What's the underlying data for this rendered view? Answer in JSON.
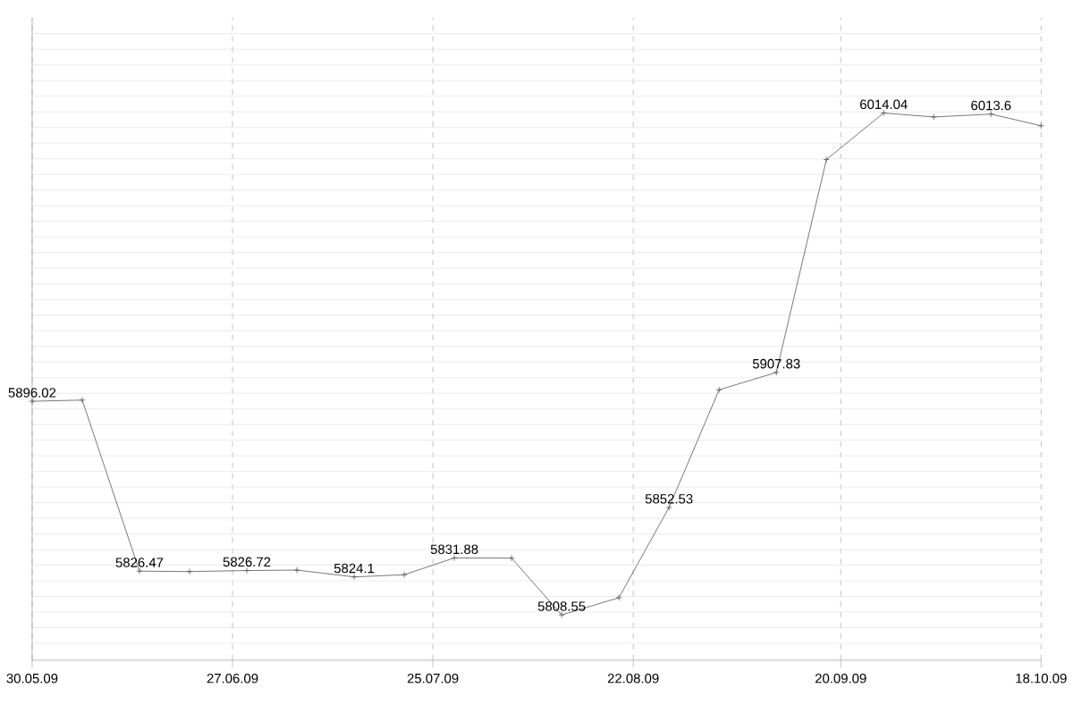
{
  "chart_data": {
    "type": "line",
    "x": [
      "2009-05-30",
      "2009-06-06",
      "2009-06-14",
      "2009-06-21",
      "2009-06-29",
      "2009-07-06",
      "2009-07-14",
      "2009-07-21",
      "2009-07-28",
      "2009-08-05",
      "2009-08-12",
      "2009-08-20",
      "2009-08-27",
      "2009-09-03",
      "2009-09-11",
      "2009-09-18",
      "2009-09-26",
      "2009-10-03",
      "2009-10-11",
      "2009-10-18"
    ],
    "series": [
      {
        "color": "#555555",
        "values": [
          5896.02,
          5896.5,
          5826.47,
          5826.3,
          5826.72,
          5826.9,
          5824.1,
          5825,
          5831.88,
          5831.8,
          5808.55,
          5815.6,
          5852.53,
          5900.7,
          5907.83,
          5995,
          6014.04,
          6012.4,
          6013.6,
          6008.8
        ],
        "value_labels": [
          "5896.02",
          null,
          "5826.47",
          null,
          "5826.72",
          null,
          "5824.1",
          null,
          "5831.88",
          null,
          "5808.55",
          null,
          "5852.53",
          null,
          "5907.83",
          null,
          "6014.04",
          null,
          "6013.6",
          null
        ]
      }
    ],
    "xlim": [
      "2009-05-30",
      "2009-10-18"
    ],
    "xticks": [
      {
        "value": "2009-05-30",
        "label": "30.05.09"
      },
      {
        "value": "2009-06-27",
        "label": "27.06.09"
      },
      {
        "value": "2009-07-25",
        "label": "25.07.09"
      },
      {
        "value": "2009-08-22",
        "label": "22.08.09"
      },
      {
        "value": "2009-09-20",
        "label": "20.09.09"
      },
      {
        "value": "2009-10-18",
        "label": "18.10.09"
      }
    ],
    "ylim": [
      5790,
      6053
    ],
    "yticks": [
      {
        "value": 5796.9,
        "label": null
      },
      {
        "value": 5803.3,
        "label": null
      },
      {
        "value": 5809.7,
        "label": null
      },
      {
        "value": 5816.1,
        "label": null
      },
      {
        "value": 5822.5,
        "label": null
      },
      {
        "value": 5828.9,
        "label": null
      },
      {
        "value": 5835.3,
        "label": null
      },
      {
        "value": 5841.7,
        "label": null
      },
      {
        "value": 5848.1,
        "label": null
      },
      {
        "value": 5854.5,
        "label": null
      },
      {
        "value": 5860.9,
        "label": null
      },
      {
        "value": 5867.3,
        "label": null
      },
      {
        "value": 5873.7,
        "label": null
      },
      {
        "value": 5880.1,
        "label": null
      },
      {
        "value": 5886.5,
        "label": null
      },
      {
        "value": 5892.9,
        "label": null
      },
      {
        "value": 5899.3,
        "label": null
      },
      {
        "value": 5905.7,
        "label": null
      },
      {
        "value": 5912.1,
        "label": null
      },
      {
        "value": 5918.5,
        "label": null
      },
      {
        "value": 5924.9,
        "label": null
      },
      {
        "value": 5931.3,
        "label": null
      },
      {
        "value": 5937.7,
        "label": null
      },
      {
        "value": 5944.1,
        "label": null
      },
      {
        "value": 5950.5,
        "label": null
      },
      {
        "value": 5956.9,
        "label": null
      },
      {
        "value": 5963.3,
        "label": null
      },
      {
        "value": 5969.7,
        "label": null
      },
      {
        "value": 5976.1,
        "label": null
      },
      {
        "value": 5982.5,
        "label": null
      },
      {
        "value": 5988.9,
        "label": null
      },
      {
        "value": 5995.3,
        "label": null
      },
      {
        "value": 6001.7,
        "label": null
      },
      {
        "value": 6008.1,
        "label": null
      },
      {
        "value": 6014.5,
        "label": null
      },
      {
        "value": 6020.9,
        "label": null
      },
      {
        "value": 6027.3,
        "label": null
      },
      {
        "value": 6033.7,
        "label": null
      },
      {
        "value": 6040.1,
        "label": null
      },
      {
        "value": 6046.5,
        "label": null
      }
    ],
    "tick_labels": "x",
    "grid": true,
    "marker": "cross",
    "line_style": "solid"
  }
}
